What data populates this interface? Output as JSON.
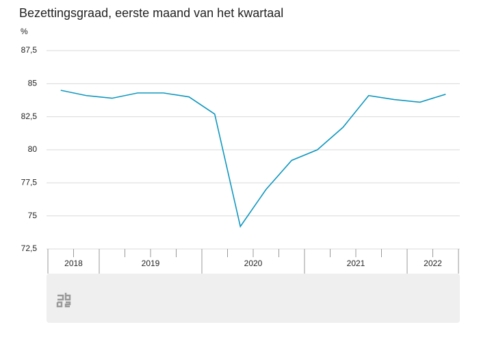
{
  "chart_data": {
    "type": "line",
    "title": "Bezettingsgraad, eerste maand van het kwartaal",
    "y_unit": "%",
    "categories": [
      null,
      null,
      null,
      null,
      null,
      null,
      null,
      null,
      null,
      null,
      null,
      null,
      null,
      null,
      null,
      null
    ],
    "x_groups": [
      {
        "label": "2018",
        "span": 2
      },
      {
        "label": "2019",
        "span": 4
      },
      {
        "label": "2020",
        "span": 4
      },
      {
        "label": "2021",
        "span": 4
      },
      {
        "label": "2022",
        "span": 2
      }
    ],
    "series": [
      {
        "name": "Bezettingsgraad",
        "color": "#0e97bf",
        "values": [
          84.5,
          84.1,
          83.9,
          84.3,
          84.3,
          84.0,
          82.7,
          74.2,
          77.0,
          79.2,
          80.0,
          81.7,
          84.1,
          83.8,
          83.6,
          84.2
        ]
      }
    ],
    "ylim": [
      72.5,
      87.5
    ],
    "yticks": [
      {
        "value": 72.5,
        "label": "72,5"
      },
      75,
      {
        "value": 77.5,
        "label": "77,5"
      },
      80,
      {
        "value": 82.5,
        "label": "82,5"
      },
      85,
      {
        "value": 87.5,
        "label": "87,5"
      }
    ],
    "grid": true
  }
}
